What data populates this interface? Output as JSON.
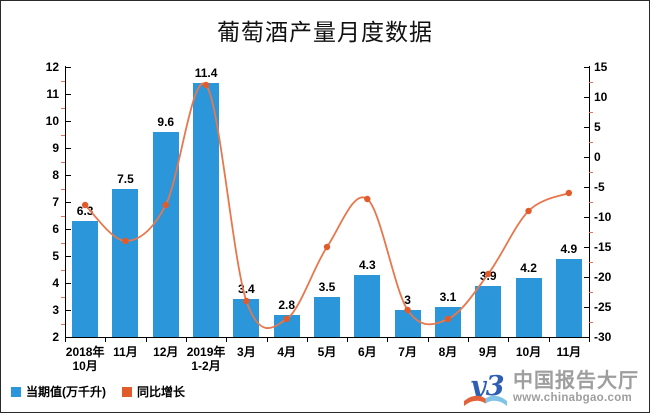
{
  "title": "葡萄酒产量月度数据",
  "legend": {
    "items": [
      {
        "label": "当期值(万千升)",
        "color": "#2b96d9"
      },
      {
        "label": "同比增长",
        "color": "#e25b2b"
      }
    ]
  },
  "brand": {
    "name": "中国报告大厅",
    "url": "www.chinabgao.com",
    "mark_text": "y3",
    "mark_color": "#2e5fb5",
    "wing_left_color": "#e4623a",
    "wing_right_color": "#82c3e8",
    "text_color": "#9e9e9e"
  },
  "chart_data": {
    "type": "bar",
    "subtype": "bar-line-combo",
    "title": "葡萄酒产量月度数据",
    "categories": [
      "2018年\n10月",
      "11月",
      "12月",
      "2019年\n1-2月",
      "3月",
      "4月",
      "5月",
      "6月",
      "7月",
      "8月",
      "9月",
      "10月",
      "11月"
    ],
    "series": [
      {
        "name": "当期值(万千升)",
        "type": "bar",
        "axis": "left",
        "color": "#2b96d9",
        "values": [
          6.3,
          7.5,
          9.6,
          11.4,
          3.4,
          2.8,
          3.5,
          4.3,
          3,
          3.1,
          3.9,
          4.2,
          4.9
        ],
        "labels": [
          "6.3",
          "7.5",
          "9.6",
          "11.4",
          "3.4",
          "2.8",
          "3.5",
          "4.3",
          "3",
          "3.1",
          "3.9",
          "4.2",
          "4.9"
        ]
      },
      {
        "name": "同比增长",
        "type": "line",
        "axis": "right",
        "color": "#e8774d",
        "marker_color": "#e25b2b",
        "values": [
          -8,
          -14,
          -8,
          12,
          -24,
          -27,
          -15,
          -7,
          -25.5,
          -27,
          -19.5,
          -9,
          -6
        ]
      }
    ],
    "left_axis": {
      "min": 2,
      "max": 12,
      "ticks": [
        12,
        11,
        10,
        9,
        8,
        7,
        6,
        5,
        4,
        3,
        2
      ],
      "minor_step": 0.5
    },
    "right_axis": {
      "min": -30,
      "max": 15,
      "ticks": [
        15,
        10,
        5,
        0,
        -5,
        -10,
        -15,
        -20,
        -25,
        -30
      ],
      "minor_step": 2.5
    },
    "grid": false,
    "legend_position": "bottom-left",
    "minor_tick_color": "#e8705c",
    "axis_color": "#000000"
  }
}
